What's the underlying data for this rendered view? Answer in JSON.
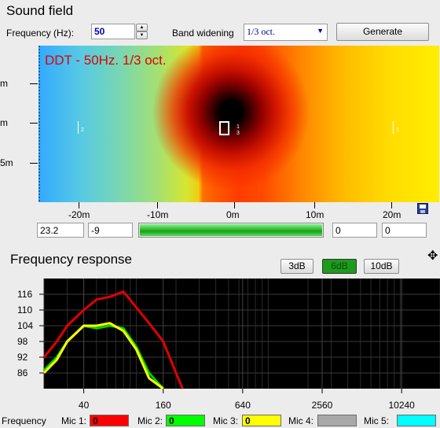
{
  "sound_field": {
    "title": "Sound field",
    "frequency_label": "Frequency (Hz):",
    "frequency_value": "50",
    "band_label": "Band widening",
    "band_value": "1/3 oct.",
    "generate_label": "Generate",
    "overlay_text": "DDT - 50Hz. 1/3 oct.",
    "y_ticks": [
      "m",
      "m",
      "5m"
    ],
    "x_ticks": [
      "-20m",
      "-10m",
      "0m",
      "10m",
      "20m"
    ],
    "field_x": "23.2",
    "field_y": "-9",
    "field_a": "0",
    "field_b": "0",
    "mic_marks": [
      "2",
      "1",
      "3",
      "1"
    ]
  },
  "frequency_response": {
    "title": "Frequency response",
    "range_buttons": [
      "3dB",
      "6dB",
      "10dB"
    ],
    "selected_range": "6dB"
  },
  "chart_data": {
    "type": "line",
    "title": "Frequency response",
    "xlabel": "",
    "ylabel": "",
    "x_scale": "log",
    "xlim": [
      20,
      20000
    ],
    "ylim": [
      80,
      122
    ],
    "x_ticks": [
      "40",
      "160",
      "640",
      "2560",
      "10240"
    ],
    "y_ticks": [
      "116",
      "110",
      "104",
      "98",
      "92",
      "86"
    ],
    "grid": true,
    "series": [
      {
        "name": "Mic 1",
        "color": "#e00000",
        "x": [
          20,
          25,
          30,
          40,
          50,
          63,
          80,
          100,
          125,
          160,
          200,
          224
        ],
        "y": [
          92,
          98,
          104,
          110,
          114,
          115,
          117,
          111,
          105,
          98,
          86,
          80
        ]
      },
      {
        "name": "Mic 2",
        "color": "#00d000",
        "x": [
          20,
          25,
          30,
          40,
          50,
          63,
          80,
          100,
          125,
          160
        ],
        "y": [
          87,
          92,
          98,
          104,
          103,
          104,
          103,
          96,
          86,
          80
        ]
      },
      {
        "name": "Mic 3",
        "color": "#ffff00",
        "x": [
          20,
          25,
          30,
          40,
          50,
          63,
          80,
          100,
          125,
          160
        ],
        "y": [
          86,
          91,
          98,
          104,
          104,
          105,
          102,
          95,
          84,
          80
        ]
      }
    ]
  },
  "legend": {
    "frequency_label": "Frequency",
    "items": [
      {
        "label": "Mic 1:",
        "value": "0",
        "color": "#ff0000"
      },
      {
        "label": "Mic 2:",
        "value": "0",
        "color": "#00ff00"
      },
      {
        "label": "Mic 3:",
        "value": "0",
        "color": "#ffff00"
      },
      {
        "label": "Mic 4:",
        "value": "",
        "color": "#a8a8a8"
      },
      {
        "label": "Mic 5:",
        "value": "",
        "color": "#00ffff"
      }
    ]
  }
}
